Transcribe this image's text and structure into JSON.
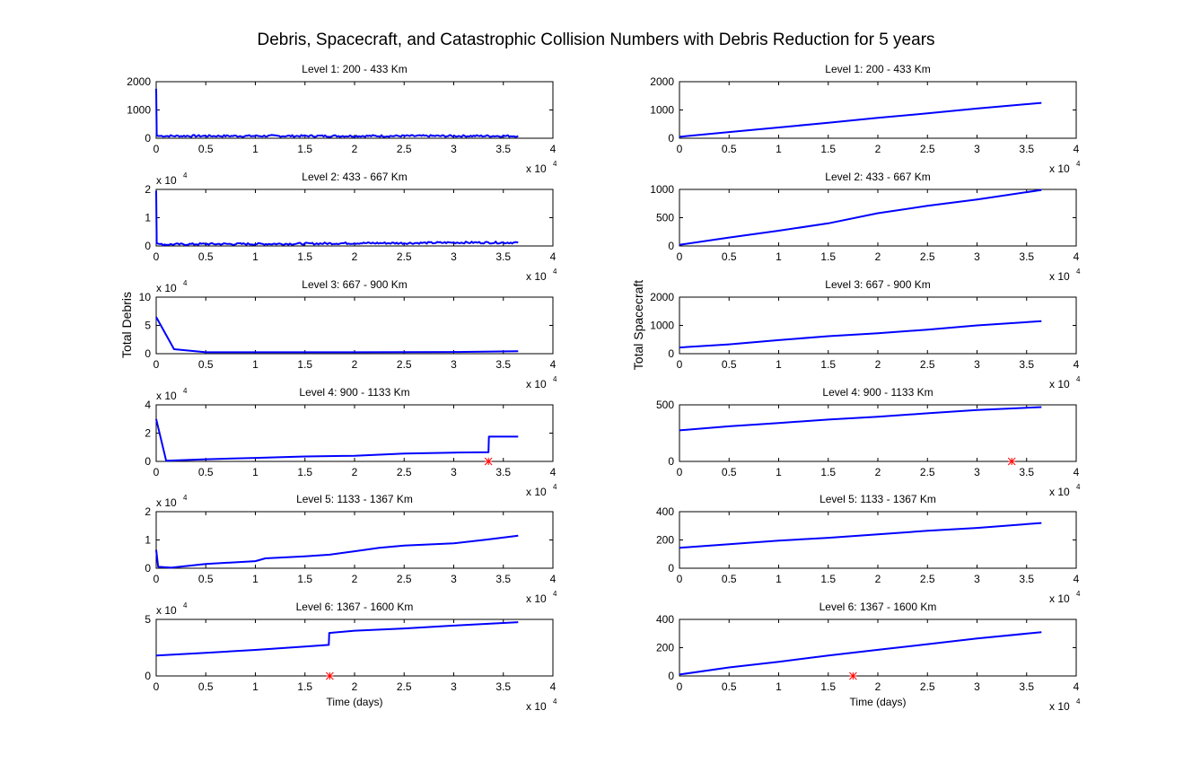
{
  "title": "Debris, Spacecraft, and Catastrophic Collision Numbers with Debris Reduction for 5 years",
  "x_axis": {
    "label": "Time (days)",
    "ticks": [
      "0",
      "0.5",
      "1",
      "1.5",
      "2",
      "2.5",
      "3",
      "3.5",
      "4"
    ],
    "multiplier_base": "x 10",
    "multiplier_exp": "4",
    "range": [
      0,
      40000
    ]
  },
  "column_labels": [
    "Total Debris",
    "Total Spacecraft"
  ],
  "colors": {
    "series": "#0000ff",
    "collision_marker": "#ff0000"
  },
  "chart_data": [
    {
      "type": "line",
      "column": 0,
      "row": 0,
      "title": "Level 1: 200 - 433 Km",
      "ylabel": "Total Debris",
      "ylim": [
        0,
        2000
      ],
      "yticks": [
        "0",
        "1000",
        "2000"
      ],
      "y_multiplier": false,
      "series": [
        {
          "name": "Debris",
          "noisy": true,
          "x": [
            0,
            50,
            150,
            400,
            36500
          ],
          "y": [
            1750,
            120,
            80,
            80,
            80
          ]
        }
      ],
      "collisions": []
    },
    {
      "type": "line",
      "column": 0,
      "row": 1,
      "title": "Level 2: 433 - 667 Km",
      "ylabel": "Total Debris",
      "ylim": [
        0,
        2
      ],
      "yticks": [
        "0",
        "1",
        "2"
      ],
      "y_multiplier": true,
      "series": [
        {
          "name": "Debris",
          "noisy": true,
          "x": [
            0,
            50,
            400,
            5000,
            10000,
            15000,
            20000,
            25000,
            30000,
            36500
          ],
          "y": [
            1.95,
            0.1,
            0.05,
            0.07,
            0.07,
            0.08,
            0.1,
            0.1,
            0.12,
            0.12
          ]
        }
      ],
      "collisions": []
    },
    {
      "type": "line",
      "column": 0,
      "row": 2,
      "title": "Level 3: 667 - 900 Km",
      "ylabel": "Total Debris",
      "ylim": [
        0,
        10
      ],
      "yticks": [
        "0",
        "5",
        "10"
      ],
      "y_multiplier": true,
      "series": [
        {
          "name": "Debris",
          "noisy": false,
          "x": [
            0,
            1800,
            5000,
            10000,
            20000,
            30000,
            36500
          ],
          "y": [
            6.5,
            0.8,
            0.25,
            0.25,
            0.25,
            0.3,
            0.45
          ]
        }
      ],
      "collisions": []
    },
    {
      "type": "line",
      "column": 0,
      "row": 3,
      "title": "Level 4: 900 - 1133 Km",
      "ylabel": "Total Debris",
      "ylim": [
        0,
        4
      ],
      "yticks": [
        "0",
        "2",
        "4"
      ],
      "y_multiplier": true,
      "series": [
        {
          "name": "Debris",
          "noisy": false,
          "x": [
            0,
            1000,
            5000,
            10000,
            15000,
            20000,
            25000,
            30000,
            33500,
            33550,
            36500
          ],
          "y": [
            3.0,
            0.05,
            0.15,
            0.25,
            0.35,
            0.4,
            0.55,
            0.62,
            0.65,
            1.75,
            1.75
          ]
        }
      ],
      "collisions": [
        33500
      ]
    },
    {
      "type": "line",
      "column": 0,
      "row": 4,
      "title": "Level 5: 1133 - 1367 Km",
      "ylabel": "Total Debris",
      "ylim": [
        0,
        2
      ],
      "yticks": [
        "0",
        "1",
        "2"
      ],
      "y_multiplier": true,
      "series": [
        {
          "name": "Debris",
          "noisy": false,
          "x": [
            0,
            200,
            1500,
            5000,
            10000,
            11000,
            15000,
            17500,
            20000,
            22500,
            25000,
            30000,
            33500,
            36500
          ],
          "y": [
            0.65,
            0.05,
            0.02,
            0.15,
            0.25,
            0.35,
            0.42,
            0.48,
            0.6,
            0.72,
            0.8,
            0.88,
            1.02,
            1.15
          ]
        }
      ],
      "collisions": []
    },
    {
      "type": "line",
      "column": 0,
      "row": 5,
      "title": "Level 6: 1367 - 1600 Km",
      "ylabel": "Total Debris",
      "ylim": [
        0,
        5
      ],
      "yticks": [
        "0",
        "5"
      ],
      "y_multiplier": true,
      "series": [
        {
          "name": "Debris",
          "noisy": false,
          "x": [
            0,
            5000,
            10000,
            15000,
            17400,
            17450,
            20000,
            25000,
            30000,
            36500
          ],
          "y": [
            1.8,
            2.05,
            2.3,
            2.6,
            2.75,
            3.8,
            4.0,
            4.2,
            4.45,
            4.75
          ]
        }
      ],
      "collisions": [
        17500
      ]
    },
    {
      "type": "line",
      "column": 1,
      "row": 0,
      "title": "Level 1: 200 - 433 Km",
      "ylabel": "Total Spacecraft",
      "ylim": [
        0,
        2000
      ],
      "yticks": [
        "0",
        "1000",
        "2000"
      ],
      "y_multiplier": false,
      "series": [
        {
          "name": "Spacecraft",
          "noisy": false,
          "x": [
            0,
            5000,
            10000,
            15000,
            20000,
            25000,
            30000,
            36500
          ],
          "y": [
            50,
            220,
            380,
            550,
            720,
            880,
            1050,
            1250
          ]
        }
      ],
      "collisions": []
    },
    {
      "type": "line",
      "column": 1,
      "row": 1,
      "title": "Level 2: 433 - 667 Km",
      "ylabel": "Total Spacecraft",
      "ylim": [
        0,
        1000
      ],
      "yticks": [
        "0",
        "500",
        "1000"
      ],
      "y_multiplier": false,
      "series": [
        {
          "name": "Spacecraft",
          "noisy": false,
          "x": [
            0,
            5000,
            10000,
            15000,
            20000,
            25000,
            30000,
            36500
          ],
          "y": [
            20,
            150,
            270,
            400,
            580,
            710,
            820,
            990
          ]
        }
      ],
      "collisions": []
    },
    {
      "type": "line",
      "column": 1,
      "row": 2,
      "title": "Level 3: 667 - 900 Km",
      "ylabel": "Total Spacecraft",
      "ylim": [
        0,
        2000
      ],
      "yticks": [
        "0",
        "1000",
        "2000"
      ],
      "y_multiplier": false,
      "series": [
        {
          "name": "Spacecraft",
          "noisy": false,
          "x": [
            0,
            5000,
            10000,
            15000,
            20000,
            25000,
            30000,
            36500
          ],
          "y": [
            220,
            330,
            480,
            620,
            720,
            850,
            1000,
            1150
          ]
        }
      ],
      "collisions": []
    },
    {
      "type": "line",
      "column": 1,
      "row": 3,
      "title": "Level 4: 900 - 1133 Km",
      "ylabel": "Total Spacecraft",
      "ylim": [
        0,
        500
      ],
      "yticks": [
        "0",
        "500"
      ],
      "y_multiplier": false,
      "series": [
        {
          "name": "Spacecraft",
          "noisy": false,
          "x": [
            0,
            5000,
            10000,
            15000,
            20000,
            25000,
            30000,
            36500
          ],
          "y": [
            275,
            310,
            340,
            370,
            395,
            425,
            455,
            480
          ]
        }
      ],
      "collisions": [
        33500
      ]
    },
    {
      "type": "line",
      "column": 1,
      "row": 4,
      "title": "Level 5: 1133 - 1367 Km",
      "ylabel": "Total Spacecraft",
      "ylim": [
        0,
        400
      ],
      "yticks": [
        "0",
        "200",
        "400"
      ],
      "y_multiplier": false,
      "series": [
        {
          "name": "Spacecraft",
          "noisy": false,
          "x": [
            0,
            5000,
            10000,
            15000,
            20000,
            25000,
            30000,
            36500
          ],
          "y": [
            145,
            170,
            195,
            215,
            240,
            265,
            285,
            320
          ]
        }
      ],
      "collisions": []
    },
    {
      "type": "line",
      "column": 1,
      "row": 5,
      "title": "Level 6: 1367 - 1600 Km",
      "ylabel": "Total Spacecraft",
      "ylim": [
        0,
        400
      ],
      "yticks": [
        "0",
        "200",
        "400"
      ],
      "y_multiplier": false,
      "series": [
        {
          "name": "Spacecraft",
          "noisy": false,
          "x": [
            0,
            5000,
            10000,
            15000,
            20000,
            25000,
            30000,
            36500
          ],
          "y": [
            10,
            60,
            100,
            145,
            185,
            225,
            265,
            310
          ]
        }
      ],
      "collisions": [
        17500
      ]
    }
  ]
}
